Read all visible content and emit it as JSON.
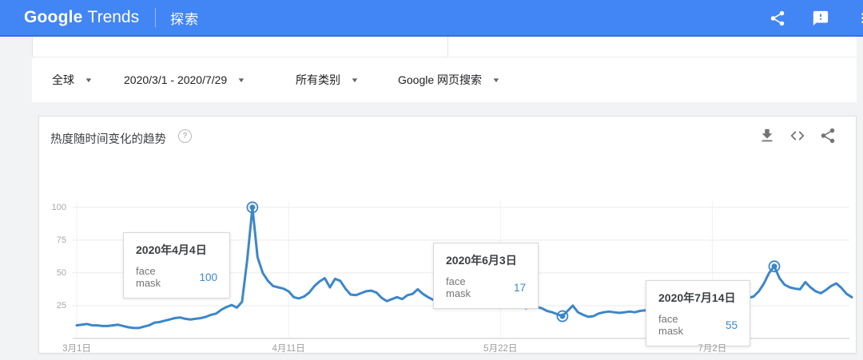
{
  "header": {
    "logo_primary": "Google",
    "logo_secondary": "Trends",
    "nav_explore": "探索"
  },
  "filters": {
    "region": "全球",
    "date_range": "2020/3/1 - 2020/7/29",
    "category": "所有类别",
    "search_type": "Google 网页搜索",
    "caret_glyph": "▼"
  },
  "card": {
    "title": "热度随时间变化的趋势",
    "help_glyph": "?"
  },
  "icons": {
    "appbar": [
      "share-icon",
      "feedback-icon",
      "menu-icon"
    ],
    "card": [
      "download-icon",
      "embed-icon",
      "share-icon"
    ]
  },
  "colors": {
    "appbar_blue": "#4285f4",
    "line_blue": "#3c87c9",
    "grid_gray": "#ebebeb",
    "axis_gray": "#dadce0"
  },
  "tooltips": [
    {
      "date": "2020年4月4日",
      "term": "face mask",
      "value": "100"
    },
    {
      "date": "2020年6月3日",
      "term": "face mask",
      "value": "17"
    },
    {
      "date": "2020年7月14日",
      "term": "face mask",
      "value": "55"
    }
  ],
  "chart_data": {
    "type": "line",
    "title": "热度随时间变化的趋势",
    "series_name": "face mask",
    "date_start": "2020/3/1",
    "date_end": "2020/7/29",
    "ylim": [
      0,
      100
    ],
    "y_ticks": [
      25,
      50,
      75,
      100
    ],
    "x_tick_days": [
      0,
      41,
      82,
      123
    ],
    "x_tick_labels": [
      "3月1日",
      "4月11日",
      "5月22日",
      "7月2日"
    ],
    "grid": true,
    "legend_position": "none",
    "line_color": "#3c87c9",
    "highlights": [
      {
        "day": 34,
        "value": 100,
        "label": "2020年4月4日"
      },
      {
        "day": 94,
        "value": 17,
        "label": "2020年6月3日"
      },
      {
        "day": 135,
        "value": 55,
        "label": "2020年7月14日"
      }
    ],
    "points": [
      [
        0,
        10
      ],
      [
        1,
        10.5
      ],
      [
        2,
        11
      ],
      [
        3,
        10
      ],
      [
        4,
        10
      ],
      [
        5,
        9.5
      ],
      [
        6,
        9.5
      ],
      [
        7,
        10
      ],
      [
        8,
        10.5
      ],
      [
        9,
        9.5
      ],
      [
        10,
        8.5
      ],
      [
        11,
        8
      ],
      [
        12,
        8
      ],
      [
        13,
        9
      ],
      [
        14,
        10
      ],
      [
        15,
        12
      ],
      [
        16,
        12.5
      ],
      [
        17,
        13.5
      ],
      [
        18,
        14.5
      ],
      [
        19,
        15.5
      ],
      [
        20,
        16
      ],
      [
        21,
        15
      ],
      [
        22,
        14.5
      ],
      [
        23,
        15
      ],
      [
        24,
        15.5
      ],
      [
        25,
        16.5
      ],
      [
        26,
        18
      ],
      [
        27,
        19
      ],
      [
        28,
        22
      ],
      [
        29,
        24
      ],
      [
        30,
        25.5
      ],
      [
        31,
        23.5
      ],
      [
        32,
        28
      ],
      [
        33,
        60
      ],
      [
        34,
        100
      ],
      [
        35,
        62
      ],
      [
        36,
        50
      ],
      [
        37,
        44
      ],
      [
        38,
        40
      ],
      [
        39,
        39
      ],
      [
        40,
        38
      ],
      [
        41,
        36
      ],
      [
        42,
        31.5
      ],
      [
        43,
        30.5
      ],
      [
        44,
        32
      ],
      [
        45,
        35
      ],
      [
        46,
        40
      ],
      [
        47,
        43.5
      ],
      [
        48,
        46
      ],
      [
        49,
        39
      ],
      [
        50,
        45.5
      ],
      [
        51,
        44
      ],
      [
        52,
        38
      ],
      [
        53,
        33.5
      ],
      [
        54,
        33
      ],
      [
        55,
        34.5
      ],
      [
        56,
        36
      ],
      [
        57,
        36.5
      ],
      [
        58,
        35
      ],
      [
        59,
        31
      ],
      [
        60,
        28.5
      ],
      [
        61,
        30
      ],
      [
        62,
        31.5
      ],
      [
        63,
        30
      ],
      [
        64,
        33
      ],
      [
        65,
        34
      ],
      [
        66,
        37.5
      ],
      [
        67,
        34
      ],
      [
        68,
        31.5
      ],
      [
        69,
        29.5
      ],
      [
        70,
        28
      ],
      [
        71,
        26.5
      ],
      [
        72,
        26
      ],
      [
        73,
        28
      ],
      [
        74,
        30
      ],
      [
        75,
        29.5
      ],
      [
        76,
        29
      ],
      [
        77,
        26
      ],
      [
        78,
        25.5
      ],
      [
        79,
        26
      ],
      [
        80,
        27
      ],
      [
        81,
        26.5
      ],
      [
        82,
        26
      ],
      [
        83,
        24.5
      ],
      [
        84,
        23.5
      ],
      [
        85,
        25
      ],
      [
        86,
        24
      ],
      [
        87,
        23
      ],
      [
        88,
        25
      ],
      [
        89,
        24
      ],
      [
        90,
        23
      ],
      [
        91,
        21
      ],
      [
        92,
        20
      ],
      [
        93,
        18.5
      ],
      [
        94,
        17
      ],
      [
        95,
        21
      ],
      [
        96,
        25
      ],
      [
        97,
        20
      ],
      [
        98,
        18
      ],
      [
        99,
        16.5
      ],
      [
        100,
        17
      ],
      [
        101,
        19
      ],
      [
        102,
        20
      ],
      [
        103,
        20.5
      ],
      [
        104,
        20
      ],
      [
        105,
        19.5
      ],
      [
        106,
        20
      ],
      [
        107,
        20.5
      ],
      [
        108,
        20
      ],
      [
        109,
        21
      ],
      [
        110,
        21.5
      ],
      [
        111,
        21
      ],
      [
        112,
        20.5
      ],
      [
        113,
        21
      ],
      [
        114,
        21.5
      ],
      [
        115,
        22
      ],
      [
        116,
        22.5
      ],
      [
        117,
        22
      ],
      [
        118,
        21.5
      ],
      [
        119,
        22
      ],
      [
        120,
        23
      ],
      [
        121,
        23.5
      ],
      [
        122,
        24
      ],
      [
        123,
        25
      ],
      [
        124,
        26.5
      ],
      [
        125,
        28
      ],
      [
        126,
        30
      ],
      [
        127,
        31
      ],
      [
        128,
        32
      ],
      [
        129,
        31.5
      ],
      [
        130,
        31
      ],
      [
        131,
        32
      ],
      [
        132,
        36
      ],
      [
        133,
        42
      ],
      [
        134,
        50
      ],
      [
        135,
        55
      ],
      [
        136,
        46
      ],
      [
        137,
        41
      ],
      [
        138,
        39
      ],
      [
        139,
        38
      ],
      [
        140,
        37.5
      ],
      [
        141,
        43
      ],
      [
        142,
        39
      ],
      [
        143,
        36
      ],
      [
        144,
        34.5
      ],
      [
        145,
        37
      ],
      [
        146,
        40
      ],
      [
        147,
        42
      ],
      [
        148,
        38.5
      ],
      [
        149,
        34
      ],
      [
        150,
        31.5
      ]
    ]
  }
}
